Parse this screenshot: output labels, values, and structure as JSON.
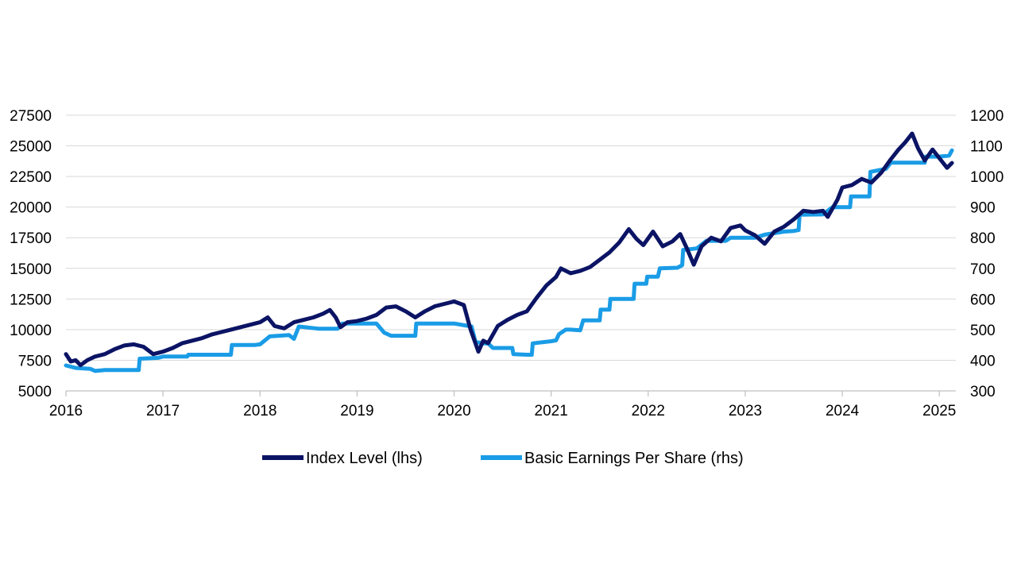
{
  "chart_data": {
    "type": "line",
    "title": "",
    "xlabel": "",
    "ylabel_left": "",
    "ylabel_right": "",
    "xlim": [
      2016.0,
      2025.17
    ],
    "ylim_left": [
      5000,
      27500
    ],
    "ylim_right": [
      300,
      1200
    ],
    "x_ticks": [
      2016,
      2017,
      2018,
      2019,
      2020,
      2021,
      2022,
      2023,
      2024,
      2025
    ],
    "x_tick_labels": [
      "2016",
      "2017",
      "2018",
      "2019",
      "2020",
      "2021",
      "2022",
      "2023",
      "2024",
      "2025"
    ],
    "y_left_ticks": [
      5000,
      7500,
      10000,
      12500,
      15000,
      17500,
      20000,
      22500,
      25000,
      27500
    ],
    "y_left_tick_labels": [
      "5000",
      "7500",
      "10000",
      "12500",
      "15000",
      "17500",
      "20000",
      "22500",
      "25000",
      "27500"
    ],
    "y_right_ticks": [
      300,
      400,
      500,
      600,
      700,
      800,
      900,
      1000,
      1100,
      1200
    ],
    "y_right_tick_labels": [
      "300",
      "400",
      "500",
      "600",
      "700",
      "800",
      "900",
      "1000",
      "1100",
      "1200"
    ],
    "grid": true,
    "legend_position": "bottom",
    "series": [
      {
        "name": "Index Level (lhs)",
        "axis": "left",
        "color": "#0b1464",
        "points": [
          [
            2016.0,
            8000
          ],
          [
            2016.05,
            7400
          ],
          [
            2016.1,
            7500
          ],
          [
            2016.15,
            7100
          ],
          [
            2016.22,
            7500
          ],
          [
            2016.3,
            7800
          ],
          [
            2016.4,
            8000
          ],
          [
            2016.5,
            8400
          ],
          [
            2016.6,
            8700
          ],
          [
            2016.7,
            8800
          ],
          [
            2016.8,
            8600
          ],
          [
            2016.9,
            8000
          ],
          [
            2017.0,
            8200
          ],
          [
            2017.1,
            8500
          ],
          [
            2017.2,
            8900
          ],
          [
            2017.3,
            9100
          ],
          [
            2017.4,
            9300
          ],
          [
            2017.5,
            9600
          ],
          [
            2017.6,
            9800
          ],
          [
            2017.7,
            10000
          ],
          [
            2017.8,
            10200
          ],
          [
            2017.9,
            10400
          ],
          [
            2018.0,
            10600
          ],
          [
            2018.08,
            11000
          ],
          [
            2018.15,
            10300
          ],
          [
            2018.25,
            10100
          ],
          [
            2018.35,
            10600
          ],
          [
            2018.45,
            10800
          ],
          [
            2018.55,
            11000
          ],
          [
            2018.65,
            11300
          ],
          [
            2018.72,
            11600
          ],
          [
            2018.78,
            11000
          ],
          [
            2018.83,
            10200
          ],
          [
            2018.9,
            10600
          ],
          [
            2019.0,
            10700
          ],
          [
            2019.1,
            10900
          ],
          [
            2019.2,
            11200
          ],
          [
            2019.3,
            11800
          ],
          [
            2019.4,
            11900
          ],
          [
            2019.5,
            11500
          ],
          [
            2019.6,
            11000
          ],
          [
            2019.7,
            11500
          ],
          [
            2019.8,
            11900
          ],
          [
            2019.9,
            12100
          ],
          [
            2020.0,
            12300
          ],
          [
            2020.1,
            12000
          ],
          [
            2020.17,
            10000
          ],
          [
            2020.25,
            8200
          ],
          [
            2020.3,
            9100
          ],
          [
            2020.35,
            8900
          ],
          [
            2020.45,
            10300
          ],
          [
            2020.55,
            10800
          ],
          [
            2020.65,
            11200
          ],
          [
            2020.75,
            11500
          ],
          [
            2020.85,
            12600
          ],
          [
            2020.95,
            13600
          ],
          [
            2021.05,
            14300
          ],
          [
            2021.1,
            15000
          ],
          [
            2021.2,
            14600
          ],
          [
            2021.3,
            14800
          ],
          [
            2021.4,
            15100
          ],
          [
            2021.5,
            15700
          ],
          [
            2021.6,
            16300
          ],
          [
            2021.7,
            17100
          ],
          [
            2021.8,
            18200
          ],
          [
            2021.88,
            17400
          ],
          [
            2021.95,
            16900
          ],
          [
            2022.05,
            18000
          ],
          [
            2022.15,
            16800
          ],
          [
            2022.25,
            17200
          ],
          [
            2022.33,
            17800
          ],
          [
            2022.4,
            16600
          ],
          [
            2022.47,
            15300
          ],
          [
            2022.55,
            16800
          ],
          [
            2022.65,
            17500
          ],
          [
            2022.75,
            17200
          ],
          [
            2022.85,
            18300
          ],
          [
            2022.95,
            18500
          ],
          [
            2023.0,
            18100
          ],
          [
            2023.1,
            17700
          ],
          [
            2023.2,
            17000
          ],
          [
            2023.3,
            18000
          ],
          [
            2023.4,
            18400
          ],
          [
            2023.5,
            19000
          ],
          [
            2023.6,
            19700
          ],
          [
            2023.7,
            19600
          ],
          [
            2023.8,
            19700
          ],
          [
            2023.85,
            19200
          ],
          [
            2023.95,
            20600
          ],
          [
            2024.0,
            21600
          ],
          [
            2024.1,
            21800
          ],
          [
            2024.2,
            22300
          ],
          [
            2024.3,
            22000
          ],
          [
            2024.4,
            22800
          ],
          [
            2024.5,
            23900
          ],
          [
            2024.58,
            24700
          ],
          [
            2024.65,
            25300
          ],
          [
            2024.72,
            26000
          ],
          [
            2024.78,
            24800
          ],
          [
            2024.85,
            23800
          ],
          [
            2024.93,
            24700
          ],
          [
            2025.0,
            24000
          ],
          [
            2025.08,
            23200
          ],
          [
            2025.13,
            23600
          ]
        ]
      },
      {
        "name": "Basic Earnings Per Share (rhs)",
        "axis": "right",
        "color": "#1a9ce6",
        "points": [
          [
            2016.0,
            383
          ],
          [
            2016.1,
            375
          ],
          [
            2016.25,
            372
          ],
          [
            2016.3,
            365
          ],
          [
            2016.4,
            368
          ],
          [
            2016.75,
            368
          ],
          [
            2016.76,
            405
          ],
          [
            2016.95,
            408
          ],
          [
            2017.0,
            412
          ],
          [
            2017.25,
            412
          ],
          [
            2017.26,
            418
          ],
          [
            2017.7,
            418
          ],
          [
            2017.71,
            450
          ],
          [
            2017.95,
            450
          ],
          [
            2018.0,
            452
          ],
          [
            2018.1,
            478
          ],
          [
            2018.3,
            482
          ],
          [
            2018.35,
            470
          ],
          [
            2018.4,
            510
          ],
          [
            2018.6,
            503
          ],
          [
            2018.8,
            503
          ],
          [
            2018.85,
            520
          ],
          [
            2019.1,
            520
          ],
          [
            2019.2,
            520
          ],
          [
            2019.28,
            490
          ],
          [
            2019.35,
            480
          ],
          [
            2019.6,
            480
          ],
          [
            2019.61,
            520
          ],
          [
            2019.95,
            520
          ],
          [
            2020.0,
            520
          ],
          [
            2020.18,
            510
          ],
          [
            2020.22,
            460
          ],
          [
            2020.3,
            455
          ],
          [
            2020.35,
            455
          ],
          [
            2020.4,
            440
          ],
          [
            2020.6,
            440
          ],
          [
            2020.61,
            420
          ],
          [
            2020.75,
            418
          ],
          [
            2020.8,
            418
          ],
          [
            2020.81,
            455
          ],
          [
            2021.0,
            462
          ],
          [
            2021.05,
            465
          ],
          [
            2021.08,
            485
          ],
          [
            2021.15,
            500
          ],
          [
            2021.2,
            500
          ],
          [
            2021.3,
            498
          ],
          [
            2021.33,
            530
          ],
          [
            2021.5,
            530
          ],
          [
            2021.51,
            565
          ],
          [
            2021.6,
            565
          ],
          [
            2021.61,
            600
          ],
          [
            2021.85,
            600
          ],
          [
            2021.86,
            650
          ],
          [
            2021.98,
            650
          ],
          [
            2021.99,
            673
          ],
          [
            2022.1,
            673
          ],
          [
            2022.12,
            700
          ],
          [
            2022.3,
            702
          ],
          [
            2022.35,
            710
          ],
          [
            2022.36,
            760
          ],
          [
            2022.5,
            765
          ],
          [
            2022.6,
            790
          ],
          [
            2022.8,
            790
          ],
          [
            2022.85,
            800
          ],
          [
            2023.0,
            800
          ],
          [
            2023.1,
            800
          ],
          [
            2023.2,
            810
          ],
          [
            2023.4,
            820
          ],
          [
            2023.5,
            822
          ],
          [
            2023.55,
            825
          ],
          [
            2023.56,
            875
          ],
          [
            2023.8,
            876
          ],
          [
            2023.85,
            888
          ],
          [
            2023.9,
            900
          ],
          [
            2024.08,
            900
          ],
          [
            2024.09,
            935
          ],
          [
            2024.28,
            935
          ],
          [
            2024.29,
            1015
          ],
          [
            2024.45,
            1025
          ],
          [
            2024.5,
            1045
          ],
          [
            2024.85,
            1045
          ],
          [
            2024.86,
            1065
          ],
          [
            2025.0,
            1065
          ],
          [
            2025.1,
            1068
          ],
          [
            2025.13,
            1085
          ]
        ]
      }
    ]
  }
}
